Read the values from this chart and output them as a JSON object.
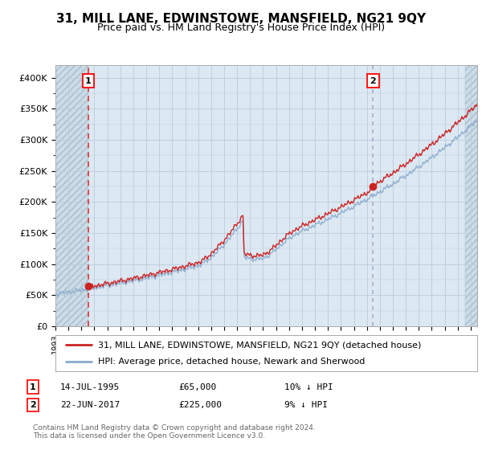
{
  "title": "31, MILL LANE, EDWINSTOWE, MANSFIELD, NG21 9QY",
  "subtitle": "Price paid vs. HM Land Registry's House Price Index (HPI)",
  "ylim": [
    0,
    420000
  ],
  "yticks": [
    0,
    50000,
    100000,
    150000,
    200000,
    250000,
    300000,
    350000,
    400000
  ],
  "ytick_labels": [
    "£0",
    "£50K",
    "£100K",
    "£150K",
    "£200K",
    "£250K",
    "£300K",
    "£350K",
    "£400K"
  ],
  "xmin": 1993,
  "xmax": 2025.5,
  "sale1_date_num": 1995.54,
  "sale1_price": 65000,
  "sale2_date_num": 2017.47,
  "sale2_price": 225000,
  "legend_line1": "31, MILL LANE, EDWINSTOWE, MANSFIELD, NG21 9QY (detached house)",
  "legend_line2": "HPI: Average price, detached house, Newark and Sherwood",
  "footer": "Contains HM Land Registry data © Crown copyright and database right 2024.\nThis data is licensed under the Open Government Licence v3.0.",
  "hatch_color": "#ccdde8",
  "grid_color": "#bbccdd",
  "plot_bg": "#dce8f2",
  "line_color_red": "#cc2222",
  "line_color_blue": "#88aacc",
  "vline_color1": "#dd3333",
  "vline_color2": "#aaaacc",
  "title_fontsize": 11,
  "subtitle_fontsize": 9
}
